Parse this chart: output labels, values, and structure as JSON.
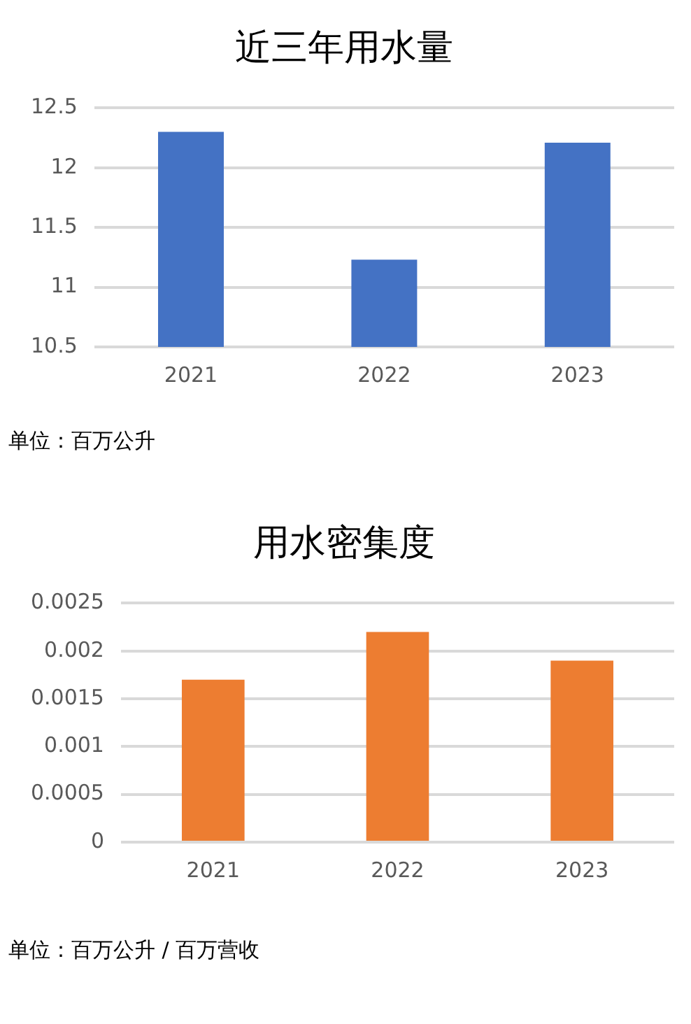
{
  "chart_data": [
    {
      "type": "bar",
      "title": "近三年用水量",
      "categories": [
        "2021",
        "2022",
        "2023"
      ],
      "values": [
        12.3,
        11.23,
        12.21
      ],
      "color": "#4472c4",
      "ylim": [
        10.5,
        12.5
      ],
      "yticks": [
        10.5,
        11,
        11.5,
        12,
        12.5
      ],
      "grid": "y",
      "legend": false,
      "annotations": [
        "单位：百万公升"
      ]
    },
    {
      "type": "bar",
      "title": "用水密集度",
      "categories": [
        "2021",
        "2022",
        "2023"
      ],
      "values": [
        0.0017,
        0.0022,
        0.0019
      ],
      "color": "#ed7d31",
      "ylim": [
        0,
        0.0025
      ],
      "yticks": [
        0,
        0.0005,
        0.001,
        0.0015,
        0.002,
        0.0025
      ],
      "grid": "y",
      "legend": false,
      "annotations": [
        "单位：百万公升 / 百万营收"
      ]
    }
  ]
}
